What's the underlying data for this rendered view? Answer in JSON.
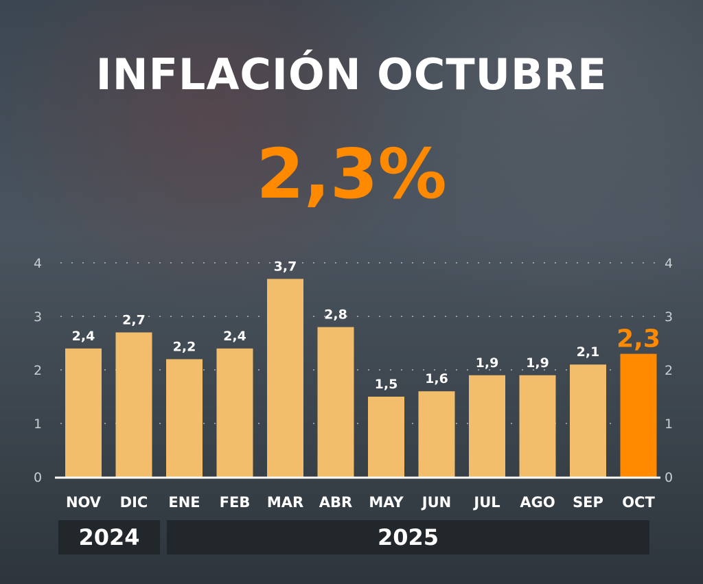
{
  "title": "INFLACIÓN OCTUBRE",
  "headline_value": "2,3%",
  "chart_data": {
    "type": "bar",
    "categories": [
      "NOV",
      "DIC",
      "ENE",
      "FEB",
      "MAR",
      "ABR",
      "MAY",
      "JUN",
      "JUL",
      "AGO",
      "SEP",
      "OCT"
    ],
    "values": [
      2.4,
      2.7,
      2.2,
      2.4,
      3.7,
      2.8,
      1.5,
      1.6,
      1.9,
      1.9,
      2.1,
      2.3
    ],
    "data_labels": [
      "2,4",
      "2,7",
      "2,2",
      "2,4",
      "3,7",
      "2,8",
      "1,5",
      "1,6",
      "1,9",
      "1,9",
      "2,1",
      "2,3"
    ],
    "highlight_index": 11,
    "yticks": [
      "0",
      "1",
      "2",
      "3",
      "4"
    ],
    "ylim": [
      0,
      4
    ],
    "grid": true,
    "colors": {
      "bar": "#f2be6b",
      "highlight": "#ff8a00"
    },
    "years": [
      {
        "label": "2024"
      },
      {
        "label": "2025"
      }
    ]
  }
}
